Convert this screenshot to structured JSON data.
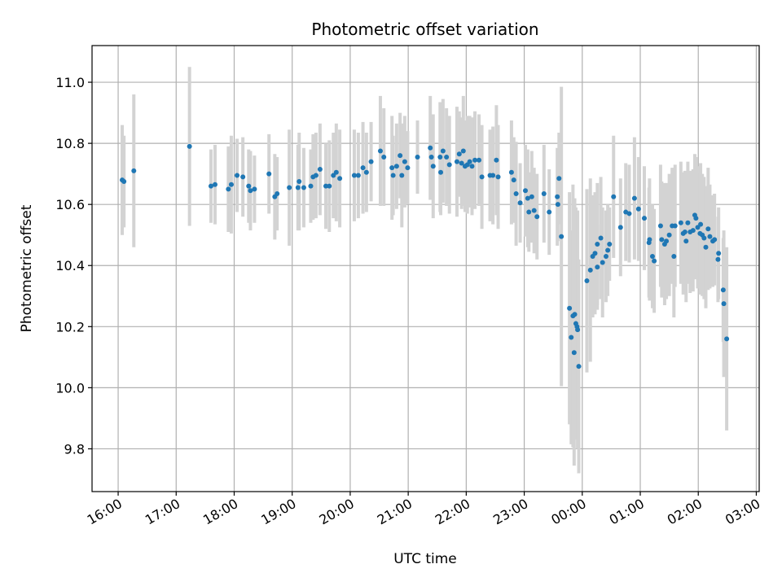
{
  "chart_data": {
    "type": "scatter",
    "title": "Photometric offset variation",
    "xlabel": "UTC time",
    "ylabel": "Photometric offset",
    "x_unit": "hours",
    "xlim": [
      15.55,
      27.05
    ],
    "ylim": [
      9.66,
      11.12
    ],
    "x_ticks": [
      16,
      17,
      18,
      19,
      20,
      21,
      22,
      23,
      24,
      25,
      26,
      27
    ],
    "x_tick_labels": [
      "16:00",
      "17:00",
      "18:00",
      "19:00",
      "20:00",
      "21:00",
      "22:00",
      "23:00",
      "00:00",
      "01:00",
      "02:00",
      "03:00"
    ],
    "y_ticks": [
      9.8,
      10.0,
      10.2,
      10.4,
      10.6,
      10.8,
      11.0
    ],
    "y_tick_labels": [
      "9.8",
      "10.0",
      "10.2",
      "10.4",
      "10.6",
      "10.8",
      "11.0"
    ],
    "grid": true,
    "colors": {
      "points": "#1f77b4",
      "errorbars": "#d3d3d3",
      "grid": "#b0b0b0"
    },
    "series": [
      {
        "points": [
          [
            16.07,
            10.68,
            0.18
          ],
          [
            16.1,
            10.675,
            0.15
          ],
          [
            16.27,
            10.71,
            0.25
          ],
          [
            17.23,
            10.79,
            0.26
          ],
          [
            17.6,
            10.66,
            0.12
          ],
          [
            17.67,
            10.665,
            0.13
          ],
          [
            17.9,
            10.65,
            0.14
          ],
          [
            17.95,
            10.665,
            0.16
          ],
          [
            18.05,
            10.695,
            0.12
          ],
          [
            18.15,
            10.69,
            0.13
          ],
          [
            18.25,
            10.66,
            0.12
          ],
          [
            18.28,
            10.645,
            0.13
          ],
          [
            18.35,
            10.65,
            0.11
          ],
          [
            18.6,
            10.7,
            0.13
          ],
          [
            18.7,
            10.625,
            0.14
          ],
          [
            18.74,
            10.635,
            0.12
          ],
          [
            18.95,
            10.655,
            0.19
          ],
          [
            19.1,
            10.655,
            0.14
          ],
          [
            19.12,
            10.675,
            0.16
          ],
          [
            19.2,
            10.655,
            0.13
          ],
          [
            19.32,
            10.66,
            0.12
          ],
          [
            19.36,
            10.69,
            0.14
          ],
          [
            19.41,
            10.695,
            0.14
          ],
          [
            19.48,
            10.715,
            0.15
          ],
          [
            19.58,
            10.66,
            0.14
          ],
          [
            19.64,
            10.66,
            0.15
          ],
          [
            19.71,
            10.695,
            0.14
          ],
          [
            19.76,
            10.705,
            0.16
          ],
          [
            19.82,
            10.685,
            0.16
          ],
          [
            20.07,
            10.695,
            0.15
          ],
          [
            20.14,
            10.695,
            0.14
          ],
          [
            20.22,
            10.72,
            0.15
          ],
          [
            20.28,
            10.705,
            0.13
          ],
          [
            20.36,
            10.74,
            0.13
          ],
          [
            20.52,
            10.775,
            0.18
          ],
          [
            20.58,
            10.755,
            0.16
          ],
          [
            20.72,
            10.72,
            0.17
          ],
          [
            20.74,
            10.695,
            0.13
          ],
          [
            20.8,
            10.725,
            0.14
          ],
          [
            20.86,
            10.76,
            0.14
          ],
          [
            20.89,
            10.695,
            0.17
          ],
          [
            20.94,
            10.74,
            0.15
          ],
          [
            20.99,
            10.72,
            0.12
          ],
          [
            21.16,
            10.755,
            0.12
          ],
          [
            21.38,
            10.785,
            0.17
          ],
          [
            21.4,
            10.755,
            0.14
          ],
          [
            21.43,
            10.725,
            0.17
          ],
          [
            21.55,
            10.755,
            0.18
          ],
          [
            21.56,
            10.705,
            0.14
          ],
          [
            21.6,
            10.775,
            0.17
          ],
          [
            21.66,
            10.755,
            0.16
          ],
          [
            21.71,
            10.73,
            0.16
          ],
          [
            21.84,
            10.74,
            0.18
          ],
          [
            21.88,
            10.765,
            0.14
          ],
          [
            21.92,
            10.735,
            0.15
          ],
          [
            21.95,
            10.775,
            0.18
          ],
          [
            21.98,
            10.725,
            0.15
          ],
          [
            22.02,
            10.73,
            0.16
          ],
          [
            22.06,
            10.74,
            0.15
          ],
          [
            22.1,
            10.725,
            0.16
          ],
          [
            22.15,
            10.745,
            0.16
          ],
          [
            22.22,
            10.745,
            0.15
          ],
          [
            22.27,
            10.69,
            0.17
          ],
          [
            22.41,
            10.695,
            0.15
          ],
          [
            22.46,
            10.695,
            0.16
          ],
          [
            22.52,
            10.745,
            0.18
          ],
          [
            22.55,
            10.69,
            0.17
          ],
          [
            22.78,
            10.705,
            0.17
          ],
          [
            22.82,
            10.68,
            0.14
          ],
          [
            22.86,
            10.635,
            0.17
          ],
          [
            22.93,
            10.605,
            0.13
          ],
          [
            23.02,
            10.645,
            0.15
          ],
          [
            23.06,
            10.62,
            0.16
          ],
          [
            23.08,
            10.575,
            0.13
          ],
          [
            23.13,
            10.625,
            0.15
          ],
          [
            23.17,
            10.58,
            0.14
          ],
          [
            23.22,
            10.56,
            0.14
          ],
          [
            23.34,
            10.635,
            0.16
          ],
          [
            23.43,
            10.575,
            0.14
          ],
          [
            23.57,
            10.625,
            0.16
          ],
          [
            23.58,
            10.6,
            0.12
          ],
          [
            23.6,
            10.685,
            0.15
          ],
          [
            23.64,
            10.495,
            0.49
          ],
          [
            23.78,
            10.26,
            0.38
          ],
          [
            23.81,
            10.165,
            0.35
          ],
          [
            23.84,
            10.235,
            0.43
          ],
          [
            23.86,
            10.115,
            0.37
          ],
          [
            23.87,
            10.24,
            0.38
          ],
          [
            23.89,
            10.21,
            0.38
          ],
          [
            23.91,
            10.2,
            0.36
          ],
          [
            23.92,
            10.19,
            0.39
          ],
          [
            23.94,
            10.07,
            0.35
          ],
          [
            24.08,
            10.35,
            0.3
          ],
          [
            24.14,
            10.385,
            0.3
          ],
          [
            24.18,
            10.43,
            0.2
          ],
          [
            24.22,
            10.44,
            0.2
          ],
          [
            24.26,
            10.47,
            0.2
          ],
          [
            24.26,
            10.395,
            0.14
          ],
          [
            24.32,
            10.49,
            0.2
          ],
          [
            24.35,
            10.41,
            0.18
          ],
          [
            24.41,
            10.43,
            0.15
          ],
          [
            24.44,
            10.45,
            0.15
          ],
          [
            24.47,
            10.47,
            0.12
          ],
          [
            24.54,
            10.625,
            0.2
          ],
          [
            24.66,
            10.525,
            0.16
          ],
          [
            24.75,
            10.575,
            0.16
          ],
          [
            24.81,
            10.57,
            0.16
          ],
          [
            24.9,
            10.62,
            0.2
          ],
          [
            24.97,
            10.585,
            0.17
          ],
          [
            25.07,
            10.555,
            0.17
          ],
          [
            25.15,
            10.475,
            0.18
          ],
          [
            25.16,
            10.485,
            0.2
          ],
          [
            25.21,
            10.43,
            0.17
          ],
          [
            25.24,
            10.415,
            0.17
          ],
          [
            25.35,
            10.53,
            0.2
          ],
          [
            25.37,
            10.485,
            0.19
          ],
          [
            25.42,
            10.47,
            0.2
          ],
          [
            25.45,
            10.48,
            0.19
          ],
          [
            25.5,
            10.5,
            0.2
          ],
          [
            25.55,
            10.53,
            0.19
          ],
          [
            25.58,
            10.43,
            0.2
          ],
          [
            25.6,
            10.53,
            0.2
          ],
          [
            25.7,
            10.54,
            0.2
          ],
          [
            25.74,
            10.505,
            0.2
          ],
          [
            25.77,
            10.51,
            0.2
          ],
          [
            25.79,
            10.48,
            0.2
          ],
          [
            25.82,
            10.54,
            0.2
          ],
          [
            25.86,
            10.51,
            0.2
          ],
          [
            25.91,
            10.515,
            0.2
          ],
          [
            25.94,
            10.565,
            0.2
          ],
          [
            25.96,
            10.555,
            0.2
          ],
          [
            25.99,
            10.525,
            0.2
          ],
          [
            26.03,
            10.505,
            0.2
          ],
          [
            26.04,
            10.535,
            0.2
          ],
          [
            26.07,
            10.5,
            0.2
          ],
          [
            26.1,
            10.49,
            0.2
          ],
          [
            26.13,
            10.46,
            0.2
          ],
          [
            26.17,
            10.52,
            0.2
          ],
          [
            26.2,
            10.495,
            0.17
          ],
          [
            26.25,
            10.48,
            0.15
          ],
          [
            26.28,
            10.485,
            0.15
          ],
          [
            26.34,
            10.42,
            0.14
          ],
          [
            26.35,
            10.44,
            0.15
          ],
          [
            26.43,
            10.32,
            0.17
          ],
          [
            26.44,
            10.275,
            0.24
          ],
          [
            26.49,
            10.16,
            0.3
          ]
        ]
      }
    ]
  }
}
